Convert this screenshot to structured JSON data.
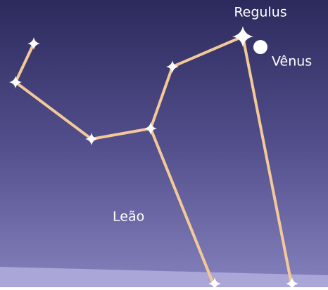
{
  "labels": {
    "star": "Regulus",
    "planet": "Vênus",
    "constellation": "Leão"
  }
}
